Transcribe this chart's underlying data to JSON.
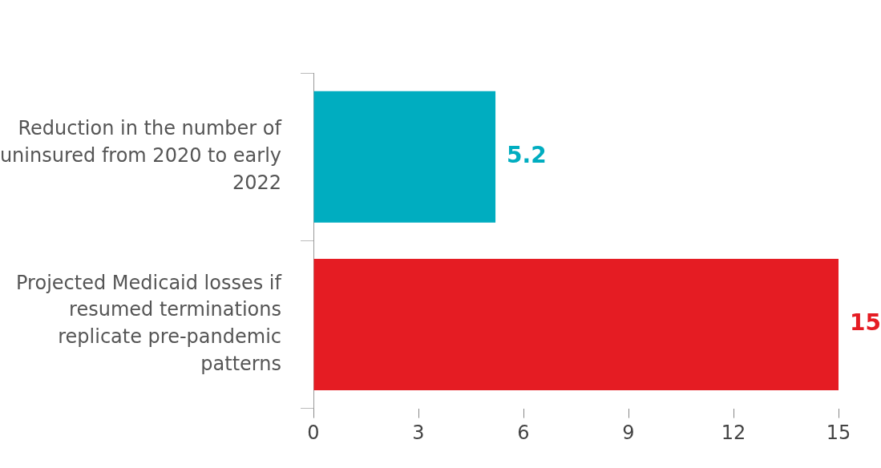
{
  "chart_data": {
    "type": "bar",
    "orientation": "horizontal",
    "categories": [
      "Reduction in the number of uninsured from 2020 to early 2022",
      "Projected Medicaid losses if resumed terminations replicate pre-pandemic patterns"
    ],
    "values": [
      5.2,
      15
    ],
    "colors": [
      "#00adc0",
      "#e51c23"
    ],
    "xlim": [
      0,
      15
    ],
    "xticks": [
      0,
      3,
      6,
      9,
      12,
      15
    ],
    "grid": false,
    "legend": false,
    "data_labels": true
  }
}
